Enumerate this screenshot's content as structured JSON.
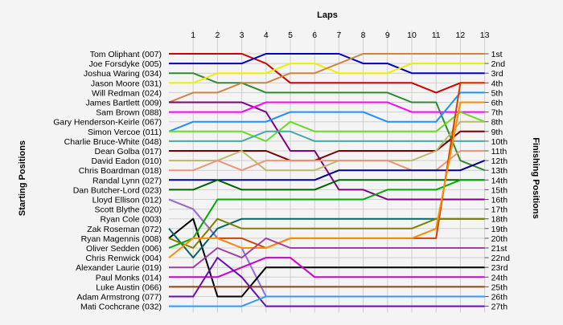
{
  "chart_data": {
    "type": "line",
    "title": "",
    "xlabel": "Laps",
    "ylabel_left": "Starting Positions",
    "ylabel_right": "Finishing Positions",
    "x": [
      0,
      1,
      2,
      3,
      4,
      5,
      6,
      7,
      8,
      9,
      10,
      11,
      12,
      13
    ],
    "x_ticks": [
      "1",
      "2",
      "3",
      "4",
      "5",
      "6",
      "7",
      "8",
      "9",
      "10",
      "11",
      "12",
      "13"
    ],
    "ylim": [
      1,
      27
    ],
    "y_inverted": true,
    "grid": true,
    "finish_labels": [
      "1st",
      "2nd",
      "3rd",
      "4th",
      "5th",
      "6th",
      "7th",
      "8th",
      "9th",
      "10th",
      "11th",
      "12th",
      "13th",
      "14th",
      "15th",
      "16th",
      "17th",
      "18th",
      "19th",
      "20th",
      "21st",
      "22nd",
      "23rd",
      "24th",
      "25th",
      "26th",
      "27th"
    ],
    "series": [
      {
        "name": "Tom Oliphant (007)",
        "color": "#cc0000",
        "values": [
          1,
          1,
          1,
          1,
          2,
          4,
          4,
          4,
          4,
          4,
          4,
          5,
          4,
          4
        ]
      },
      {
        "name": "Joe Forsdyke (005)",
        "color": "#0000bb",
        "values": [
          2,
          2,
          2,
          2,
          1,
          1,
          1,
          1,
          2,
          2,
          3,
          3,
          3,
          3
        ]
      },
      {
        "name": "Joshua Waring (034)",
        "color": "#2e8b2e",
        "values": [
          3,
          3,
          4,
          4,
          5,
          5,
          5,
          5,
          5,
          5,
          6,
          6,
          12,
          13
        ]
      },
      {
        "name": "Jason Moore (031)",
        "color": "#eeee00",
        "values": [
          4,
          4,
          3,
          3,
          3,
          2,
          2,
          3,
          3,
          3,
          2,
          2,
          2,
          2
        ]
      },
      {
        "name": "Will Redman (024)",
        "color": "#cd853f",
        "values": [
          6,
          5,
          5,
          4,
          4,
          3,
          3,
          2,
          1,
          1,
          1,
          1,
          1,
          1
        ]
      },
      {
        "name": "James Bartlett (009)",
        "color": "#800080",
        "values": [
          6,
          6,
          6,
          6,
          7,
          11,
          11,
          15,
          15,
          16,
          16,
          16,
          16,
          16
        ]
      },
      {
        "name": "Sam Brown (088)",
        "color": "#ff00ff",
        "values": [
          7,
          7,
          7,
          7,
          6,
          6,
          6,
          6,
          6,
          6,
          7,
          7,
          7,
          7
        ]
      },
      {
        "name": "Gary Henderson-Keirle (067)",
        "color": "#1e90ff",
        "values": [
          9,
          8,
          8,
          8,
          8,
          7,
          7,
          7,
          7,
          8,
          8,
          8,
          5,
          5
        ]
      },
      {
        "name": "Simon Vercoe (011)",
        "color": "#66dd22",
        "values": [
          9,
          9,
          9,
          9,
          10,
          8,
          9,
          9,
          9,
          9,
          9,
          9,
          7,
          8
        ]
      },
      {
        "name": "Charlie Bruce-White (048)",
        "color": "#48a8a8",
        "values": [
          10,
          10,
          10,
          10,
          9,
          9,
          10,
          10,
          10,
          10,
          10,
          10,
          10,
          10
        ]
      },
      {
        "name": "Dean Golba (017)",
        "color": "#770000",
        "values": [
          11,
          11,
          11,
          11,
          11,
          12,
          12,
          11,
          11,
          11,
          11,
          11,
          9,
          9
        ]
      },
      {
        "name": "David Eadon (010)",
        "color": "#bdb76b",
        "values": [
          12,
          12,
          12,
          11,
          13,
          13,
          13,
          12,
          12,
          12,
          12,
          11,
          8,
          8
        ]
      },
      {
        "name": "Chris Boardman (018)",
        "color": "#e9967a",
        "values": [
          13,
          13,
          12,
          13,
          12,
          12,
          12,
          12,
          12,
          12,
          13,
          13,
          11,
          11
        ]
      },
      {
        "name": "Randal Lynn (027)",
        "color": "#000088",
        "values": [
          14,
          14,
          14,
          14,
          14,
          14,
          14,
          13,
          13,
          13,
          13,
          13,
          13,
          12
        ]
      },
      {
        "name": "Dan Butcher-Lord (023)",
        "color": "#006400",
        "values": [
          15,
          15,
          14,
          15,
          15,
          15,
          15,
          14,
          14,
          14,
          14,
          14,
          14,
          14
        ]
      },
      {
        "name": "Lloyd Ellison (012)",
        "color": "#cc4400",
        "values": [
          16,
          17,
          20,
          20,
          21,
          20,
          20,
          20,
          20,
          20,
          20,
          20,
          4,
          4
        ]
      },
      {
        "name": "Scott Blythe (020)",
        "color": "#9370db",
        "values": [
          16,
          17,
          20,
          21,
          26,
          26,
          26,
          26,
          26,
          26,
          26,
          26,
          26,
          26
        ]
      },
      {
        "name": "Ryan Cole (003)",
        "color": "#000000",
        "values": [
          20,
          18,
          26,
          26,
          23,
          23,
          23,
          23,
          23,
          23,
          23,
          23,
          23,
          23
        ]
      },
      {
        "name": "Zak Roseman (072)",
        "color": "#006666",
        "values": [
          19,
          22,
          19,
          18,
          18,
          18,
          18,
          18,
          18,
          18,
          18,
          18,
          18,
          18
        ]
      },
      {
        "name": "Ryan Magennis (008)",
        "color": "#808000",
        "values": [
          20,
          21,
          18,
          19,
          19,
          19,
          19,
          19,
          19,
          19,
          19,
          18,
          18,
          18
        ]
      },
      {
        "name": "Oliver Sedden (006)",
        "color": "#00aa00",
        "values": [
          21,
          20,
          16,
          16,
          16,
          16,
          16,
          16,
          16,
          15,
          15,
          15,
          14,
          14
        ]
      },
      {
        "name": "Chris Renwick (004)",
        "color": "#ff8c00",
        "values": [
          22,
          20,
          20,
          21,
          21,
          20,
          20,
          20,
          20,
          20,
          20,
          19,
          6,
          6
        ]
      },
      {
        "name": "Alexander Laurie (019)",
        "color": "#a040a0",
        "values": [
          23,
          23,
          21,
          22,
          20,
          21,
          21,
          21,
          21,
          21,
          21,
          21,
          21,
          21
        ]
      },
      {
        "name": "Paul Monks (014)",
        "color": "#cc00cc",
        "values": [
          24,
          24,
          24,
          23,
          22,
          22,
          24,
          24,
          24,
          24,
          24,
          24,
          24,
          24
        ]
      },
      {
        "name": "Luke Austin (066)",
        "color": "#8b4513",
        "values": [
          25,
          25,
          25,
          25,
          25,
          25,
          25,
          25,
          25,
          25,
          25,
          25,
          25,
          25
        ]
      },
      {
        "name": "Adam Armstrong (077)",
        "color": "#6a0dad",
        "values": [
          26,
          26,
          22,
          24,
          27,
          27,
          27,
          27,
          27,
          27,
          27,
          27,
          27,
          27
        ]
      },
      {
        "name": "Mati Cochcrane (032)",
        "color": "#3399ff",
        "values": [
          27,
          27,
          27,
          27,
          26,
          26,
          26,
          26,
          26,
          26,
          26,
          26,
          26,
          26
        ]
      }
    ]
  }
}
